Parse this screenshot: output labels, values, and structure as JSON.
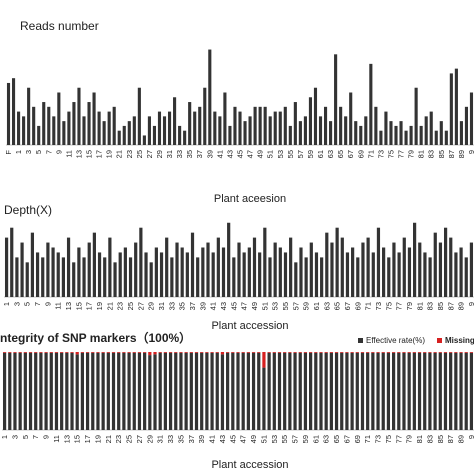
{
  "chart_data": [
    {
      "type": "bar",
      "title": "Reads number",
      "x_label": "Plant aceesion",
      "color": "#333333",
      "ylim": [
        0,
        110
      ],
      "categories": [
        "F",
        null,
        "1",
        null,
        "3",
        null,
        "5",
        null,
        "7",
        null,
        "9",
        null,
        "11",
        null,
        "13",
        null,
        "15",
        null,
        "17",
        null,
        "19",
        null,
        "21",
        null,
        "23",
        null,
        "25",
        null,
        "27",
        null,
        "29",
        null,
        "31",
        null,
        "33",
        null,
        "35",
        null,
        "37",
        null,
        "39",
        null,
        "41",
        null,
        "43",
        null,
        "45",
        null,
        "47",
        null,
        "49",
        null,
        "51",
        null,
        "53",
        null,
        "55",
        null,
        "57",
        null,
        "59",
        null,
        "61",
        null,
        "63",
        null,
        "65",
        null,
        "67",
        null,
        "69",
        null,
        "71",
        null,
        "73",
        null,
        "75",
        null,
        "77",
        null,
        "79",
        null,
        "81",
        null,
        "83",
        null,
        "85",
        null,
        "87",
        null,
        "89",
        null,
        "9"
      ],
      "values": [
        65,
        70,
        35,
        30,
        60,
        40,
        20,
        45,
        40,
        30,
        55,
        25,
        35,
        45,
        60,
        30,
        45,
        55,
        35,
        25,
        35,
        40,
        15,
        20,
        25,
        30,
        60,
        10,
        30,
        20,
        35,
        30,
        35,
        50,
        20,
        15,
        45,
        35,
        40,
        60,
        100,
        35,
        30,
        55,
        20,
        40,
        35,
        25,
        30,
        40,
        40,
        40,
        30,
        35,
        35,
        40,
        20,
        45,
        25,
        30,
        50,
        60,
        30,
        40,
        25,
        95,
        40,
        30,
        55,
        25,
        20,
        30,
        85,
        40,
        15,
        35,
        25,
        20,
        25,
        15,
        20,
        60,
        20,
        30,
        35,
        15,
        25,
        15,
        75,
        80,
        25,
        40,
        55
      ]
    },
    {
      "type": "bar",
      "title": "Depth(X)",
      "x_label": "Plant accession",
      "color": "#333333",
      "ylim": [
        0,
        100
      ],
      "categories": [
        "1",
        null,
        "3",
        null,
        "5",
        null,
        "7",
        null,
        "9",
        null,
        "11",
        null,
        "13",
        null,
        "15",
        null,
        "17",
        null,
        "19",
        null,
        "21",
        null,
        "23",
        null,
        "25",
        null,
        "27",
        null,
        "29",
        null,
        "31",
        null,
        "33",
        null,
        "35",
        null,
        "37",
        null,
        "39",
        null,
        "41",
        null,
        "43",
        null,
        "45",
        null,
        "47",
        null,
        "49",
        null,
        "51",
        null,
        "53",
        null,
        "55",
        null,
        "57",
        null,
        "59",
        null,
        "61",
        null,
        "63",
        null,
        "65",
        null,
        "67",
        null,
        "69",
        null,
        "71",
        null,
        "73",
        null,
        "75",
        null,
        "77",
        null,
        "79",
        null,
        "81",
        null,
        "83",
        null,
        "85",
        null,
        "87",
        null,
        "89",
        null,
        "9"
      ],
      "values": [
        60,
        70,
        40,
        55,
        35,
        65,
        45,
        40,
        55,
        50,
        45,
        40,
        60,
        35,
        50,
        40,
        55,
        65,
        45,
        40,
        60,
        35,
        45,
        50,
        40,
        55,
        70,
        45,
        35,
        50,
        45,
        60,
        40,
        55,
        50,
        45,
        65,
        40,
        50,
        55,
        45,
        60,
        50,
        75,
        40,
        55,
        45,
        50,
        60,
        45,
        70,
        40,
        55,
        50,
        45,
        60,
        35,
        50,
        40,
        55,
        45,
        40,
        65,
        55,
        70,
        60,
        45,
        50,
        40,
        55,
        60,
        45,
        70,
        50,
        40,
        55,
        45,
        60,
        50,
        75,
        55,
        45,
        40,
        65,
        55,
        70,
        60,
        45,
        50,
        40,
        55
      ]
    },
    {
      "type": "stacked_bar",
      "title": "ntegrity of SNP markers（100%）",
      "x_label": "Plant accession",
      "ylim": [
        0,
        100
      ],
      "categories": [
        "1",
        null,
        "3",
        null,
        "5",
        null,
        "7",
        null,
        "9",
        null,
        "11",
        null,
        "13",
        null,
        "15",
        null,
        "17",
        null,
        "19",
        null,
        "21",
        null,
        "23",
        null,
        "25",
        null,
        "27",
        null,
        "29",
        null,
        "31",
        null,
        "33",
        null,
        "35",
        null,
        "37",
        null,
        "39",
        null,
        "41",
        null,
        "43",
        null,
        "45",
        null,
        "47",
        null,
        "49",
        null,
        "51",
        null,
        "53",
        null,
        "55",
        null,
        "57",
        null,
        "59",
        null,
        "61",
        null,
        "63",
        null,
        "65",
        null,
        "67",
        null,
        "69",
        null,
        "71",
        null,
        "73",
        null,
        "75",
        null,
        "77",
        null,
        "79",
        null,
        "81",
        null,
        "83",
        null,
        "85",
        null,
        "87",
        null,
        "89",
        null,
        "9"
      ],
      "series": [
        {
          "name": "Effective rate(%)",
          "color": "#333333",
          "values": [
            99,
            99,
            99,
            99,
            99,
            99,
            99,
            99,
            99,
            99,
            99,
            99,
            99,
            99,
            97,
            99,
            99,
            99,
            99,
            99,
            99,
            99,
            99,
            99,
            99,
            99,
            99,
            99,
            96,
            97,
            99,
            99,
            99,
            99,
            99,
            99,
            99,
            99,
            99,
            99,
            99,
            99,
            97,
            99,
            99,
            99,
            99,
            99,
            99,
            99,
            80,
            99,
            99,
            99,
            99,
            99,
            99,
            99,
            99,
            99,
            99,
            99,
            99,
            99,
            99,
            99,
            99,
            99,
            99,
            99,
            99,
            99,
            99,
            99,
            99,
            99,
            99,
            99,
            99,
            99,
            99,
            99,
            99,
            99,
            99,
            99,
            99,
            99,
            99,
            99,
            99
          ]
        },
        {
          "name": "Missing",
          "color": "#d62020",
          "values": [
            1,
            1,
            1,
            1,
            1,
            1,
            1,
            1,
            1,
            1,
            1,
            1,
            1,
            1,
            3,
            1,
            1,
            1,
            1,
            1,
            1,
            1,
            1,
            1,
            1,
            1,
            1,
            1,
            4,
            3,
            1,
            1,
            1,
            1,
            1,
            1,
            1,
            1,
            1,
            1,
            1,
            1,
            3,
            1,
            1,
            1,
            1,
            1,
            1,
            1,
            20,
            1,
            1,
            1,
            1,
            1,
            1,
            1,
            1,
            1,
            1,
            1,
            1,
            1,
            1,
            1,
            1,
            1,
            1,
            1,
            1,
            1,
            1,
            1,
            1,
            1,
            1,
            1,
            1,
            1,
            1,
            1,
            1,
            1,
            1,
            1,
            1,
            1,
            1,
            1,
            1
          ]
        }
      ]
    }
  ]
}
